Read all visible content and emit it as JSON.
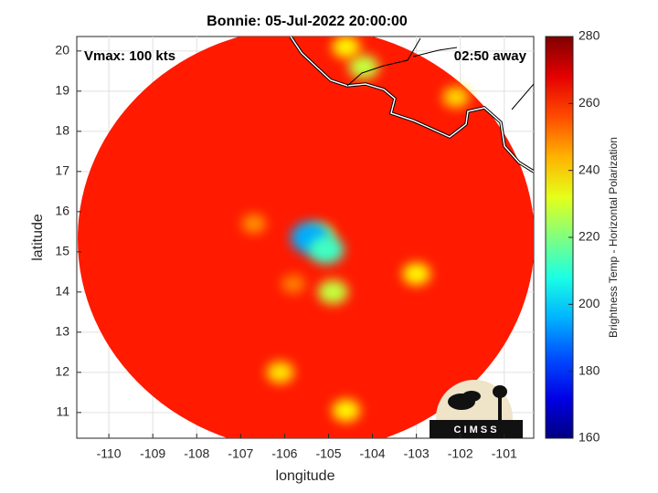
{
  "chart_data": {
    "type": "map",
    "title": "Bonnie: 05-Jul-2022 20:00:00",
    "annotations": [
      "Vmax: 100 kts",
      "02:50 away"
    ],
    "xlabel": "longitude",
    "ylabel": "latitude",
    "xlim": [
      -110.73,
      -100.33
    ],
    "xticks": [
      -110,
      -109,
      -108,
      -107,
      -106,
      -105,
      -104,
      -103,
      -102,
      -101
    ],
    "ylim": [
      10.36,
      20.36
    ],
    "yticks": [
      11,
      12,
      13,
      14,
      15,
      16,
      17,
      18,
      19,
      20
    ],
    "grid": true,
    "colormap": "jet",
    "clim": [
      160,
      280
    ],
    "cticks": [
      160,
      180,
      200,
      220,
      240,
      260,
      280
    ],
    "colorbar_label": "Brightness Temp - Horizontal Polarization",
    "background_value": 262,
    "cells": [
      {
        "lon": -105.2,
        "lat": 15.4,
        "value": 232
      },
      {
        "lon": -105.4,
        "lat": 15.35,
        "value": 195
      },
      {
        "lon": -105.05,
        "lat": 15.05,
        "value": 212
      },
      {
        "lon": -104.9,
        "lat": 14.0,
        "value": 228
      },
      {
        "lon": -103.0,
        "lat": 14.45,
        "value": 236
      },
      {
        "lon": -106.1,
        "lat": 12.0,
        "value": 238
      },
      {
        "lon": -104.2,
        "lat": 19.6,
        "value": 228
      },
      {
        "lon": -104.6,
        "lat": 20.1,
        "value": 236
      },
      {
        "lon": -102.1,
        "lat": 18.85,
        "value": 240
      },
      {
        "lon": -104.6,
        "lat": 11.05,
        "value": 236
      },
      {
        "lon": -106.7,
        "lat": 15.7,
        "value": 248
      },
      {
        "lon": -105.8,
        "lat": 14.2,
        "value": 250
      }
    ],
    "logo_text": "C I M S S"
  }
}
